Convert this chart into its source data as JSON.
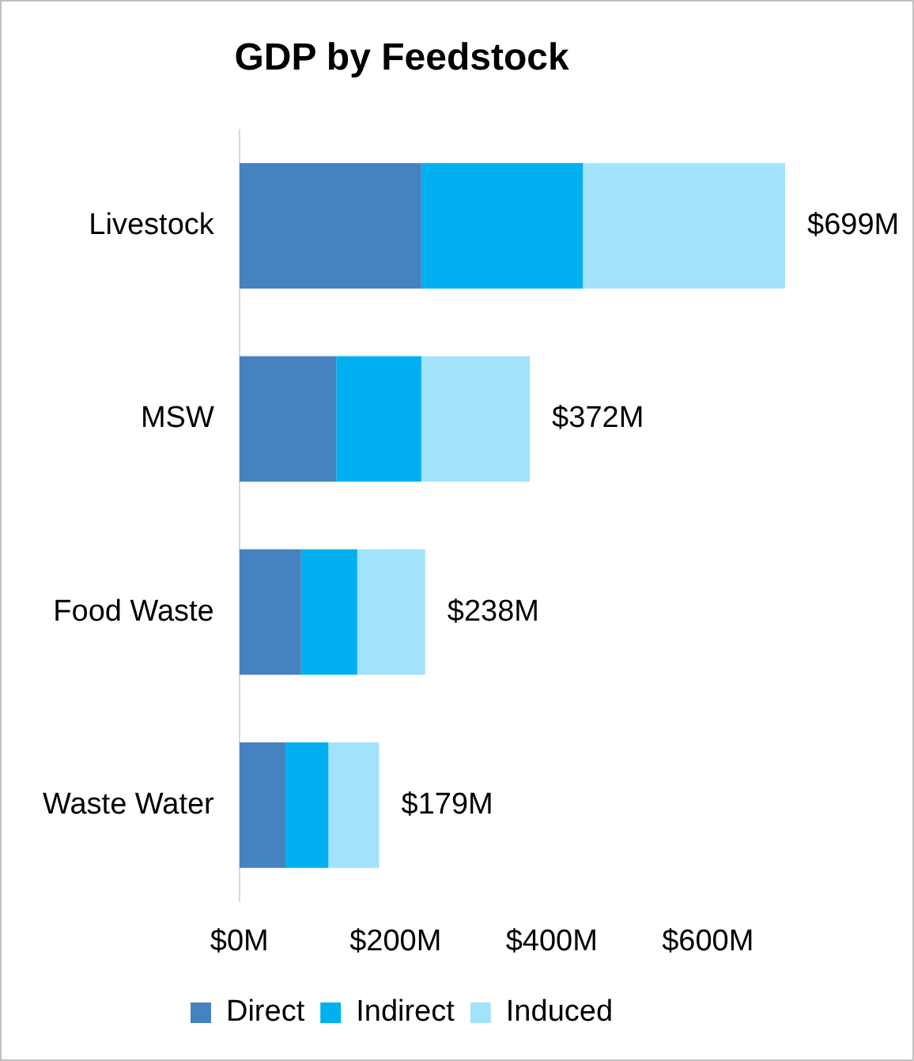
{
  "chart_data": {
    "type": "bar",
    "title": "GDP by Feedstock",
    "orientation": "horizontal",
    "stacked": true,
    "categories": [
      "Livestock",
      "MSW",
      "Food Waste",
      "Waste Water"
    ],
    "series": [
      {
        "name": "Direct",
        "color": "#4682c0",
        "values": [
          233,
          124,
          79,
          59
        ]
      },
      {
        "name": "Indirect",
        "color": "#00b0f0",
        "values": [
          207,
          109,
          72,
          55
        ]
      },
      {
        "name": "Induced",
        "color": "#a3e2fb",
        "values": [
          259,
          139,
          87,
          65
        ]
      }
    ],
    "xlim": [
      0,
      700
    ],
    "xticks": [
      {
        "value": 0,
        "label": "$0M"
      },
      {
        "value": 200,
        "label": "$200M"
      },
      {
        "value": 400,
        "label": "$400M"
      },
      {
        "value": 600,
        "label": "$600M"
      }
    ],
    "totals": [
      "$699M",
      "$372M",
      "$238M",
      "$179M"
    ],
    "grid": false,
    "legend": "bottom"
  }
}
